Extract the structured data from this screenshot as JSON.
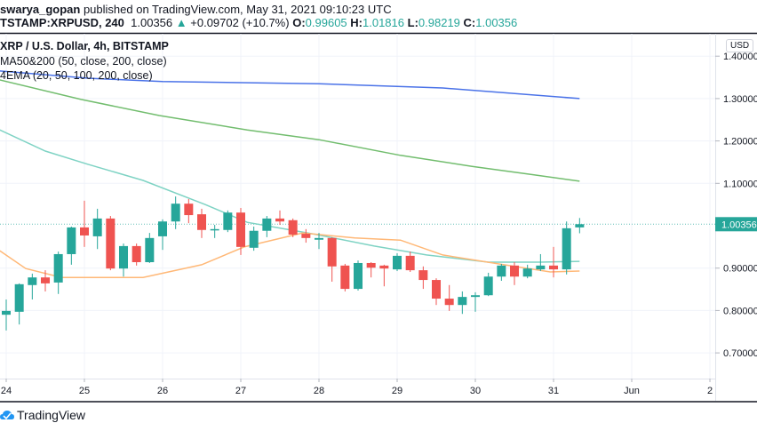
{
  "header": {
    "author": "swarya_gopan",
    "published_text": "published on TradingView.com, May 31, 2021 09:10:23 UTC",
    "symbol": "TSTAMP:XRPUSD, 240",
    "last": "1.00356",
    "change": "+0.09702 (+10.7%)",
    "o_label": "O:",
    "o": "0.99605",
    "h_label": "H:",
    "h": "1.01816",
    "l_label": "L:",
    "l": "0.98219",
    "c_label": "C:",
    "c": "1.00356"
  },
  "legend": {
    "title": "XRP / U.S. Dollar, 4h, BITSTAMP",
    "ind1": "MA50&200 (50, close, 200, close)",
    "ind2": "4EMA (20, 50, 100, 200, close)"
  },
  "currency_label": "USD",
  "footer": {
    "brand": "TradingView"
  },
  "colors": {
    "up": "#26a69a",
    "down": "#ef5350",
    "ma_blue": "#4a72e8",
    "ma_green": "#72bd6e",
    "ema_cyan": "#7fd3c4",
    "ema_orange": "#ffb877",
    "grid": "#f0f3fa"
  },
  "chart_data": {
    "type": "candlestick",
    "interval": "4h",
    "ylim": [
      0.64,
      1.45
    ],
    "y_ticks": [
      "1.40000",
      "1.30000",
      "1.20000",
      "1.10000",
      "0.90000",
      "0.80000",
      "0.70000"
    ],
    "y_tick_values": [
      1.4,
      1.3,
      1.2,
      1.1,
      0.9,
      0.8,
      0.7
    ],
    "last_price_label": "1.00356",
    "last_price": 1.00356,
    "x_ticks": [
      {
        "label": "24",
        "t": "2021-05-24T00:00"
      },
      {
        "label": "25",
        "t": "2021-05-25T00:00"
      },
      {
        "label": "26",
        "t": "2021-05-26T00:00"
      },
      {
        "label": "27",
        "t": "2021-05-27T00:00"
      },
      {
        "label": "28",
        "t": "2021-05-28T00:00"
      },
      {
        "label": "29",
        "t": "2021-05-29T00:00"
      },
      {
        "label": "30",
        "t": "2021-05-30T00:00"
      },
      {
        "label": "31",
        "t": "2021-05-31T00:00"
      },
      {
        "label": "Jun",
        "t": "2021-06-01T00:00"
      },
      {
        "label": "2",
        "t": "2021-06-02T00:00"
      }
    ],
    "x_range": [
      "2021-05-23T22:00",
      "2021-06-02T06:00"
    ],
    "grid": true,
    "first_candle": "2021-05-24T00:00",
    "candles": [
      [
        0.79,
        0.826,
        0.753,
        0.799
      ],
      [
        0.797,
        0.864,
        0.767,
        0.862
      ],
      [
        0.86,
        0.887,
        0.826,
        0.878
      ],
      [
        0.878,
        0.895,
        0.845,
        0.864
      ],
      [
        0.866,
        0.939,
        0.839,
        0.933
      ],
      [
        0.933,
        0.998,
        0.908,
        0.996
      ],
      [
        0.996,
        1.059,
        0.95,
        0.977
      ],
      [
        0.975,
        1.04,
        0.945,
        1.017
      ],
      [
        1.017,
        1.023,
        0.895,
        0.899
      ],
      [
        0.899,
        0.958,
        0.88,
        0.952
      ],
      [
        0.952,
        0.958,
        0.906,
        0.914
      ],
      [
        0.914,
        0.983,
        0.912,
        0.971
      ],
      [
        0.975,
        1.015,
        0.943,
        1.01
      ],
      [
        1.01,
        1.069,
        0.992,
        1.052
      ],
      [
        1.052,
        1.063,
        1.006,
        1.025
      ],
      [
        1.027,
        1.04,
        0.971,
        0.99
      ],
      [
        0.99,
        1.002,
        0.971,
        0.992
      ],
      [
        0.99,
        1.036,
        0.985,
        1.031
      ],
      [
        1.031,
        1.042,
        0.931,
        0.95
      ],
      [
        0.948,
        0.998,
        0.941,
        0.988
      ],
      [
        0.988,
        1.023,
        0.973,
        1.017
      ],
      [
        1.017,
        1.036,
        1.002,
        1.01
      ],
      [
        1.013,
        1.017,
        0.973,
        0.979
      ],
      [
        0.981,
        0.992,
        0.96,
        0.971
      ],
      [
        0.967,
        0.983,
        0.945,
        0.971
      ],
      [
        0.971,
        0.973,
        0.868,
        0.904
      ],
      [
        0.906,
        0.91,
        0.845,
        0.851
      ],
      [
        0.851,
        0.918,
        0.847,
        0.912
      ],
      [
        0.912,
        0.914,
        0.878,
        0.901
      ],
      [
        0.906,
        0.908,
        0.857,
        0.899
      ],
      [
        0.897,
        0.935,
        0.893,
        0.929
      ],
      [
        0.929,
        0.939,
        0.891,
        0.895
      ],
      [
        0.895,
        0.904,
        0.851,
        0.872
      ],
      [
        0.872,
        0.876,
        0.813,
        0.828
      ],
      [
        0.828,
        0.86,
        0.799,
        0.813
      ],
      [
        0.813,
        0.845,
        0.792,
        0.832
      ],
      [
        0.832,
        0.843,
        0.797,
        0.836
      ],
      [
        0.836,
        0.889,
        0.834,
        0.88
      ],
      [
        0.88,
        0.91,
        0.87,
        0.906
      ],
      [
        0.906,
        0.914,
        0.86,
        0.88
      ],
      [
        0.88,
        0.908,
        0.876,
        0.899
      ],
      [
        0.897,
        0.933,
        0.893,
        0.906
      ],
      [
        0.906,
        0.95,
        0.878,
        0.897
      ],
      [
        0.897,
        1.01,
        0.885,
        0.994
      ],
      [
        0.99605,
        1.01816,
        0.98219,
        1.00356
      ]
    ],
    "candle_fields": [
      "open",
      "high",
      "low",
      "close"
    ],
    "lines": [
      {
        "color_key": "ma_blue",
        "points": [
          [
            "2021-05-23T22:00",
            1.365
          ],
          [
            "2021-05-25T01:00",
            1.348
          ],
          [
            "2021-05-26T00:00",
            1.34
          ],
          [
            "2021-05-28T00:00",
            1.335
          ],
          [
            "2021-05-29T14:00",
            1.325
          ],
          [
            "2021-05-31T08:00",
            1.3
          ]
        ]
      },
      {
        "color_key": "ma_green",
        "points": [
          [
            "2021-05-23T22:00",
            1.344
          ],
          [
            "2021-05-24T23:00",
            1.298
          ],
          [
            "2021-05-25T23:00",
            1.26
          ],
          [
            "2021-05-27T02:00",
            1.226
          ],
          [
            "2021-05-28T00:00",
            1.203
          ],
          [
            "2021-05-29T01:00",
            1.166
          ],
          [
            "2021-05-29T23:00",
            1.14
          ],
          [
            "2021-05-30T18:00",
            1.12
          ],
          [
            "2021-05-31T08:00",
            1.105
          ]
        ]
      },
      {
        "color_key": "ema_cyan",
        "points": [
          [
            "2021-05-23T22:00",
            1.226
          ],
          [
            "2021-05-24T12:00",
            1.176
          ],
          [
            "2021-05-25T01:00",
            1.145
          ],
          [
            "2021-05-25T18:00",
            1.107
          ],
          [
            "2021-05-26T13:00",
            1.05
          ],
          [
            "2021-05-27T02:00",
            1.008
          ],
          [
            "2021-05-27T22:00",
            0.981
          ],
          [
            "2021-05-28T17:00",
            0.952
          ],
          [
            "2021-05-29T09:00",
            0.931
          ],
          [
            "2021-05-30T04:00",
            0.914
          ],
          [
            "2021-05-30T20:00",
            0.914
          ],
          [
            "2021-05-31T08:00",
            0.916
          ]
        ]
      },
      {
        "color_key": "ema_orange",
        "points": [
          [
            "2021-05-23T22:00",
            0.941
          ],
          [
            "2021-05-24T06:00",
            0.899
          ],
          [
            "2021-05-24T17:00",
            0.878
          ],
          [
            "2021-05-25T18:00",
            0.878
          ],
          [
            "2021-05-26T12:00",
            0.908
          ],
          [
            "2021-05-27T01:00",
            0.95
          ],
          [
            "2021-05-27T19:00",
            0.983
          ],
          [
            "2021-05-28T11:00",
            0.971
          ],
          [
            "2021-05-29T01:00",
            0.966
          ],
          [
            "2021-05-29T14:00",
            0.931
          ],
          [
            "2021-05-30T07:00",
            0.91
          ],
          [
            "2021-05-30T23:00",
            0.891
          ],
          [
            "2021-05-31T08:00",
            0.893
          ]
        ]
      }
    ]
  }
}
